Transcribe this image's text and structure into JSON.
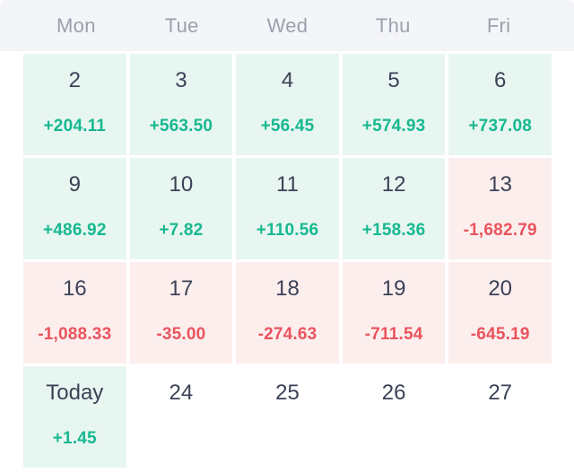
{
  "calendar": {
    "weekdays": [
      "Mon",
      "Tue",
      "Wed",
      "Thu",
      "Fri"
    ],
    "weeks": [
      {
        "days": [
          {
            "label": "2",
            "value": "+204.11",
            "state": "gain"
          },
          {
            "label": "3",
            "value": "+563.50",
            "state": "gain"
          },
          {
            "label": "4",
            "value": "+56.45",
            "state": "gain"
          },
          {
            "label": "5",
            "value": "+574.93",
            "state": "gain"
          },
          {
            "label": "6",
            "value": "+737.08",
            "state": "gain"
          }
        ]
      },
      {
        "days": [
          {
            "label": "9",
            "value": "+486.92",
            "state": "gain"
          },
          {
            "label": "10",
            "value": "+7.82",
            "state": "gain"
          },
          {
            "label": "11",
            "value": "+110.56",
            "state": "gain"
          },
          {
            "label": "12",
            "value": "+158.36",
            "state": "gain"
          },
          {
            "label": "13",
            "value": "-1,682.79",
            "state": "loss"
          }
        ]
      },
      {
        "days": [
          {
            "label": "16",
            "value": "-1,088.33",
            "state": "loss"
          },
          {
            "label": "17",
            "value": "-35.00",
            "state": "loss"
          },
          {
            "label": "18",
            "value": "-274.63",
            "state": "loss"
          },
          {
            "label": "19",
            "value": "-711.54",
            "state": "loss"
          },
          {
            "label": "20",
            "value": "-645.19",
            "state": "loss"
          }
        ]
      },
      {
        "days": [
          {
            "label": "Today",
            "value": "+1.45",
            "state": "gain"
          },
          {
            "label": "24",
            "value": "",
            "state": "none"
          },
          {
            "label": "25",
            "value": "",
            "state": "none"
          },
          {
            "label": "26",
            "value": "",
            "state": "none"
          },
          {
            "label": "27",
            "value": "",
            "state": "none"
          }
        ]
      }
    ]
  },
  "colors": {
    "gain_bg": "#e7f6f1",
    "gain_text": "#17b890",
    "loss_bg": "#fdeeee",
    "loss_text": "#e9545d",
    "date_text": "#3b4256",
    "header_bg": "#f4f5f8",
    "header_text": "#9ba1ad",
    "page_bg": "#ffffff"
  }
}
